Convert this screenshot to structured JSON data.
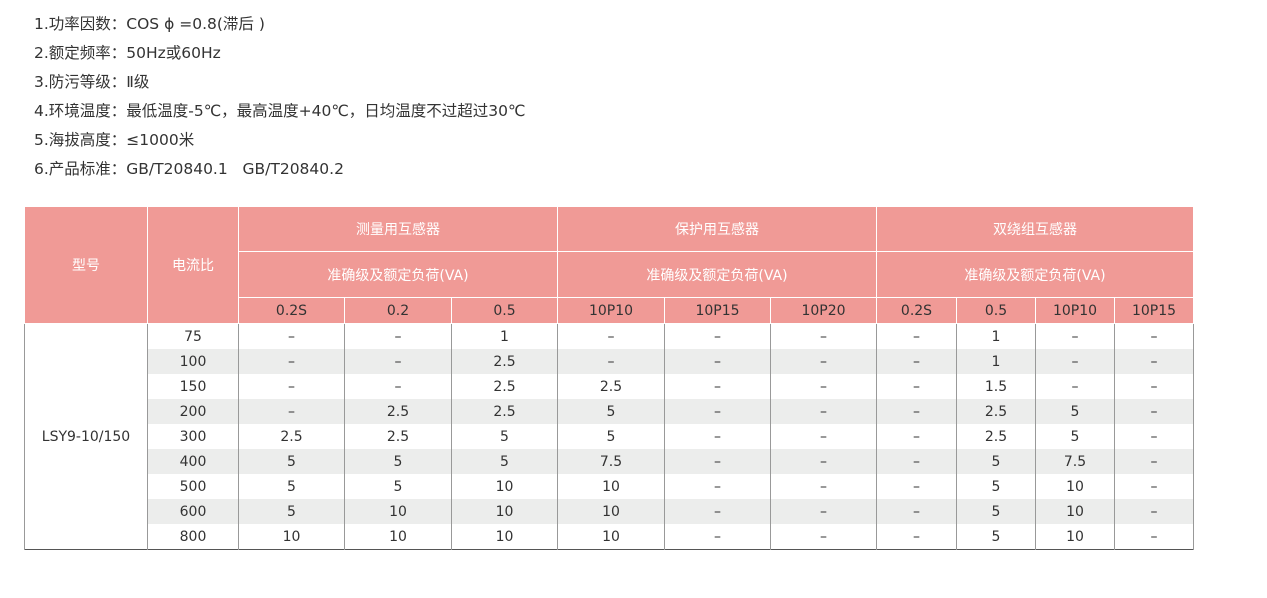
{
  "specs": [
    "1.功率因数：COS ϕ =0.8(滞后 )",
    "2.额定频率：50Hz或60Hz",
    "3.防污等级：Ⅱ级",
    "4.环境温度：最低温度-5℃，最高温度+40℃，日均温度不过超过30℃",
    "5.海拔高度：≤1000米",
    "6.产品标准：GB/T20840.1   GB/T20840.2"
  ],
  "table": {
    "model_header": "型号",
    "ratio_header": "电流比",
    "groups": [
      "测量用互感器",
      "保护用互感器",
      "双绕组互感器"
    ],
    "sub_header": "准确级及额定负荷(VA)",
    "classes": [
      "0.2S",
      "0.2",
      "0.5",
      "10P10",
      "10P15",
      "10P20",
      "0.2S",
      "0.5",
      "10P10",
      "10P15"
    ],
    "model": "LSY9-10/150",
    "rows": [
      [
        "75",
        "–",
        "–",
        "1",
        "–",
        "–",
        "–",
        "–",
        "1",
        "–",
        "–"
      ],
      [
        "100",
        "–",
        "–",
        "2.5",
        "–",
        "–",
        "–",
        "–",
        "1",
        "–",
        "–"
      ],
      [
        "150",
        "–",
        "–",
        "2.5",
        "2.5",
        "–",
        "–",
        "–",
        "1.5",
        "–",
        "–"
      ],
      [
        "200",
        "–",
        "2.5",
        "2.5",
        "5",
        "–",
        "–",
        "–",
        "2.5",
        "5",
        "–"
      ],
      [
        "300",
        "2.5",
        "2.5",
        "5",
        "5",
        "–",
        "–",
        "–",
        "2.5",
        "5",
        "–"
      ],
      [
        "400",
        "5",
        "5",
        "5",
        "7.5",
        "–",
        "–",
        "–",
        "5",
        "7.5",
        "–"
      ],
      [
        "500",
        "5",
        "5",
        "10",
        "10",
        "–",
        "–",
        "–",
        "5",
        "10",
        "–"
      ],
      [
        "600",
        "5",
        "10",
        "10",
        "10",
        "–",
        "–",
        "–",
        "5",
        "10",
        "–"
      ],
      [
        "800",
        "10",
        "10",
        "10",
        "10",
        "–",
        "–",
        "–",
        "5",
        "10",
        "–"
      ]
    ]
  }
}
